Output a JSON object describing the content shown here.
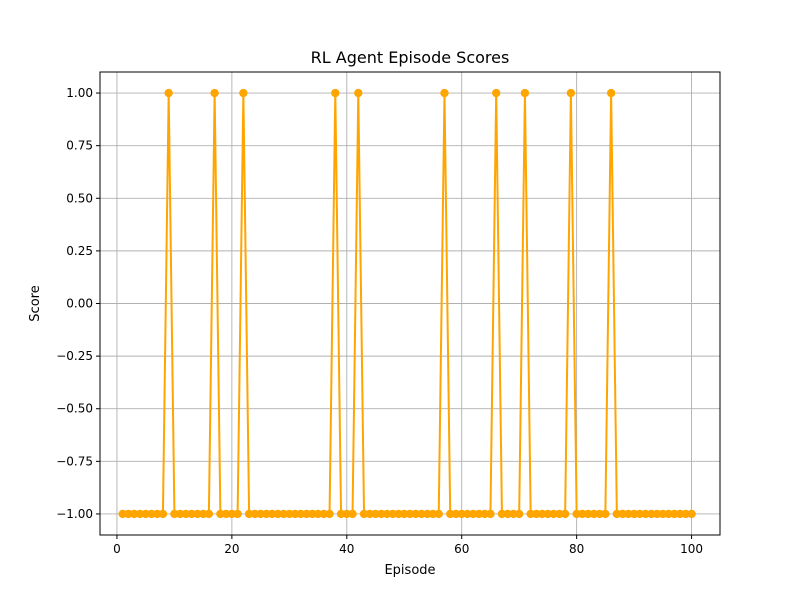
{
  "chart_data": {
    "type": "line",
    "title": "RL Agent Episode Scores",
    "xlabel": "Episode",
    "ylabel": "Score",
    "xlim": [
      -2.95,
      104.95
    ],
    "ylim": [
      -1.1,
      1.1
    ],
    "x_ticks": [
      0,
      20,
      40,
      60,
      80,
      100
    ],
    "x_tick_labels": [
      "0",
      "20",
      "40",
      "60",
      "80",
      "100"
    ],
    "y_ticks": [
      -1.0,
      -0.75,
      -0.5,
      -0.25,
      0.0,
      0.25,
      0.5,
      0.75,
      1.0
    ],
    "y_tick_labels": [
      "−1.00",
      "−0.75",
      "−0.50",
      "−0.25",
      "0.00",
      "0.25",
      "0.50",
      "0.75",
      "1.00"
    ],
    "grid": true,
    "series": [
      {
        "color": "#ffa500",
        "marker": "circle",
        "x": [
          1,
          2,
          3,
          4,
          5,
          6,
          7,
          8,
          9,
          10,
          11,
          12,
          13,
          14,
          15,
          16,
          17,
          18,
          19,
          20,
          21,
          22,
          23,
          24,
          25,
          26,
          27,
          28,
          29,
          30,
          31,
          32,
          33,
          34,
          35,
          36,
          37,
          38,
          39,
          40,
          41,
          42,
          43,
          44,
          45,
          46,
          47,
          48,
          49,
          50,
          51,
          52,
          53,
          54,
          55,
          56,
          57,
          58,
          59,
          60,
          61,
          62,
          63,
          64,
          65,
          66,
          67,
          68,
          69,
          70,
          71,
          72,
          73,
          74,
          75,
          76,
          77,
          78,
          79,
          80,
          81,
          82,
          83,
          84,
          85,
          86,
          87,
          88,
          89,
          90,
          91,
          92,
          93,
          94,
          95,
          96,
          97,
          98,
          99,
          100
        ],
        "y": [
          -1,
          -1,
          -1,
          -1,
          -1,
          -1,
          -1,
          -1,
          1,
          -1,
          -1,
          -1,
          -1,
          -1,
          -1,
          -1,
          1,
          -1,
          -1,
          -1,
          -1,
          1,
          -1,
          -1,
          -1,
          -1,
          -1,
          -1,
          -1,
          -1,
          -1,
          -1,
          -1,
          -1,
          -1,
          -1,
          -1,
          1,
          -1,
          -1,
          -1,
          1,
          -1,
          -1,
          -1,
          -1,
          -1,
          -1,
          -1,
          -1,
          -1,
          -1,
          -1,
          -1,
          -1,
          -1,
          1,
          -1,
          -1,
          -1,
          -1,
          -1,
          -1,
          -1,
          -1,
          1,
          -1,
          -1,
          -1,
          -1,
          1,
          -1,
          -1,
          -1,
          -1,
          -1,
          -1,
          -1,
          1,
          -1,
          -1,
          -1,
          -1,
          -1,
          -1,
          1,
          -1,
          -1,
          -1,
          -1,
          -1,
          -1,
          -1,
          -1,
          -1,
          -1,
          -1,
          -1,
          -1,
          -1
        ]
      }
    ]
  }
}
